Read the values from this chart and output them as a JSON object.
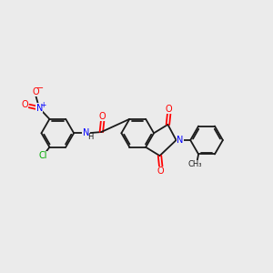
{
  "background_color": "#ebebeb",
  "bond_color": "#1a1a1a",
  "oxygen_color": "#ff0000",
  "nitrogen_color": "#0000ff",
  "chlorine_color": "#00aa00",
  "fig_width": 3.0,
  "fig_height": 3.0,
  "dpi": 100,
  "xlim": [
    0,
    12
  ],
  "ylim": [
    0,
    10
  ]
}
